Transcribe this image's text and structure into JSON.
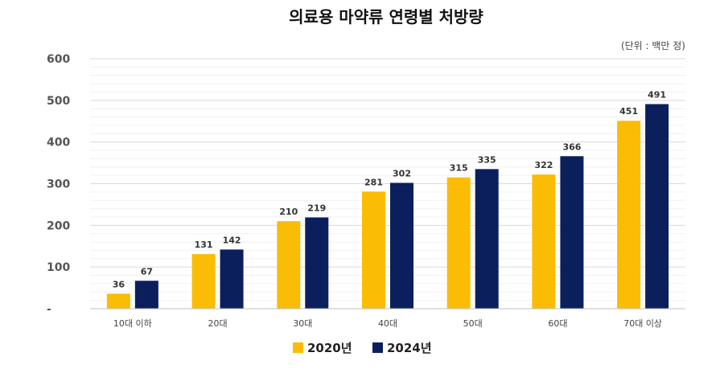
{
  "chart_data": {
    "type": "bar",
    "title": "의료용 마약류 연령별 처방량",
    "unit_note": "(단위 : 백만 정)",
    "categories": [
      "10대 이하",
      "20대",
      "30대",
      "40대",
      "50대",
      "60대",
      "70대 이상"
    ],
    "series": [
      {
        "name": "2020년",
        "color": "#FBBC05",
        "values": [
          36,
          131,
          210,
          281,
          315,
          322,
          451
        ]
      },
      {
        "name": "2024년",
        "color": "#0B1F5C",
        "values": [
          67,
          142,
          219,
          302,
          335,
          366,
          491
        ]
      }
    ],
    "y_ticks": [
      "-",
      "100",
      "200",
      "300",
      "400",
      "500",
      "600"
    ],
    "ylim": [
      0,
      600
    ],
    "grid": true,
    "legend_position": "bottom"
  }
}
